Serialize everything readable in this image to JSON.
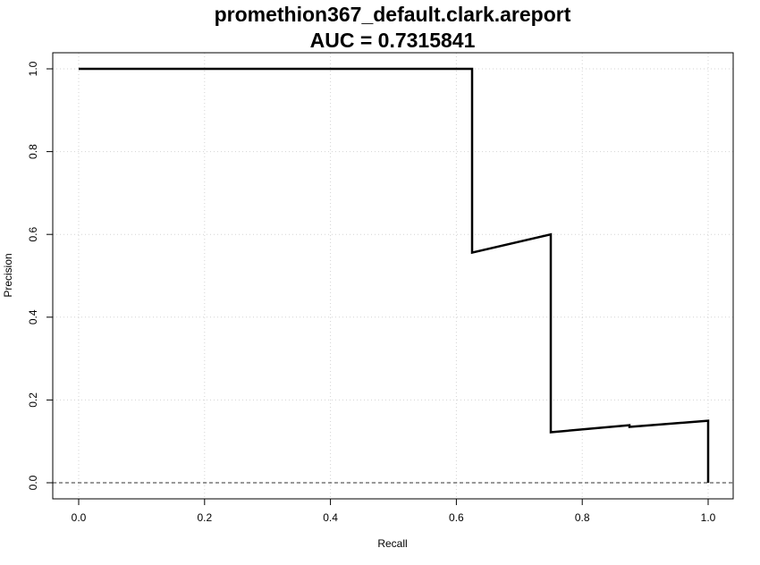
{
  "chart_data": {
    "type": "line",
    "title": "promethion367_default.clark.areport",
    "subtitle": "AUC = 0.7315841",
    "xlabel": "Recall",
    "ylabel": "Precision",
    "xlim": [
      0.0,
      1.0
    ],
    "ylim": [
      0.0,
      1.0
    ],
    "x_ticks": [
      "0.0",
      "0.2",
      "0.4",
      "0.6",
      "0.8",
      "1.0"
    ],
    "y_ticks": [
      "0.0",
      "0.2",
      "0.4",
      "0.6",
      "0.8",
      "1.0"
    ],
    "grid": true,
    "reference_line": {
      "y": 0.0,
      "style": "dashed"
    },
    "series": [
      {
        "x": [
          0.0,
          0.625,
          0.625,
          0.75,
          0.75,
          0.875,
          0.875,
          1.0,
          1.0
        ],
        "y": [
          1.0,
          1.0,
          0.556,
          0.6,
          0.122,
          0.139,
          0.135,
          0.15,
          0.0
        ],
        "color": "#000000"
      }
    ]
  }
}
